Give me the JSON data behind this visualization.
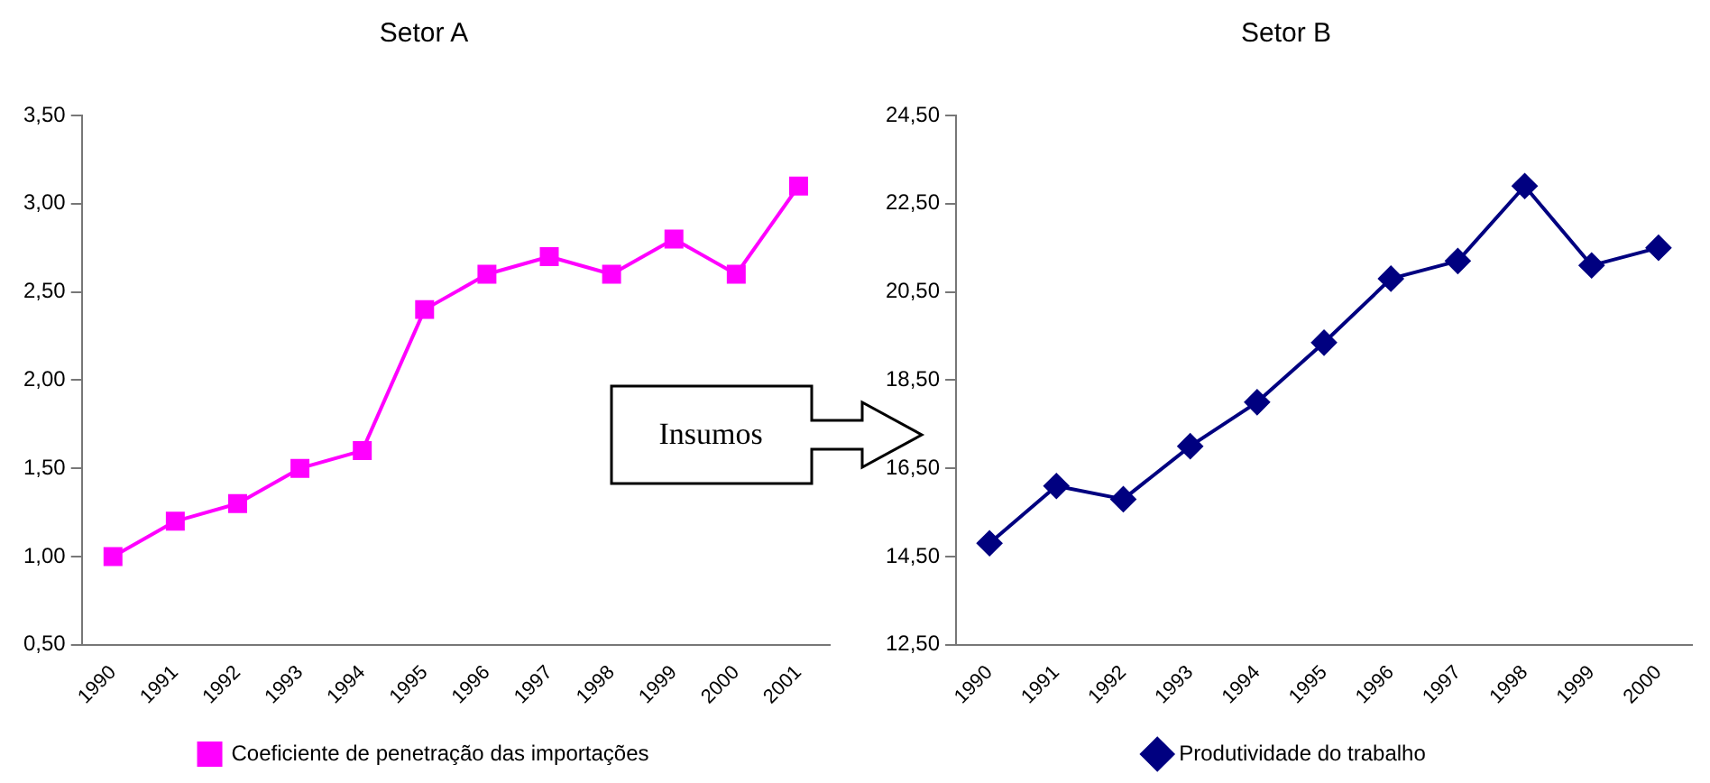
{
  "chart_data": [
    {
      "type": "line",
      "title": "Setor A",
      "categories": [
        "1990",
        "1991",
        "1992",
        "1993",
        "1994",
        "1995",
        "1996",
        "1997",
        "1998",
        "1999",
        "2000",
        "2001"
      ],
      "series": [
        {
          "name": "Coeficiente de penetração das importações",
          "color": "#ff00ff",
          "values": [
            1.0,
            1.2,
            1.3,
            1.5,
            1.6,
            2.4,
            2.6,
            2.7,
            2.6,
            2.8,
            2.6,
            3.1
          ]
        }
      ],
      "ylim": [
        0.5,
        3.5
      ],
      "yticks": [
        {
          "value": 0.5,
          "label": "0,50"
        },
        {
          "value": 1,
          "label": "1,00"
        },
        {
          "value": 1.5,
          "label": "1,50"
        },
        {
          "value": 2,
          "label": "2,00"
        },
        {
          "value": 2.5,
          "label": "2,50"
        },
        {
          "value": 3,
          "label": "3,00"
        },
        {
          "value": 3.5,
          "label": "3,50"
        }
      ],
      "marker": "square",
      "legend": "bottom",
      "grid": false,
      "annotations": [
        "Insumos"
      ]
    },
    {
      "type": "line",
      "title": "Setor B",
      "categories": [
        "1990",
        "1991",
        "1992",
        "1993",
        "1994",
        "1995",
        "1996",
        "1997",
        "1998",
        "1999",
        "2000"
      ],
      "series": [
        {
          "name": "Produtividade do trabalho",
          "color": "#000080",
          "values": [
            14.8,
            16.1,
            15.8,
            17.0,
            18.0,
            19.35,
            20.8,
            21.2,
            22.9,
            21.1,
            21.5
          ]
        }
      ],
      "ylim": [
        12.5,
        24.5
      ],
      "yticks": [
        {
          "value": 12.5,
          "label": "12,50"
        },
        {
          "value": 14.5,
          "label": "14,50"
        },
        {
          "value": 16.5,
          "label": "16,50"
        },
        {
          "value": 18.5,
          "label": "18,50"
        },
        {
          "value": 20.5,
          "label": "20,50"
        },
        {
          "value": 22.5,
          "label": "22,50"
        },
        {
          "value": 24.5,
          "label": "24,50"
        }
      ],
      "marker": "diamond",
      "legend": "bottom",
      "grid": false
    }
  ]
}
